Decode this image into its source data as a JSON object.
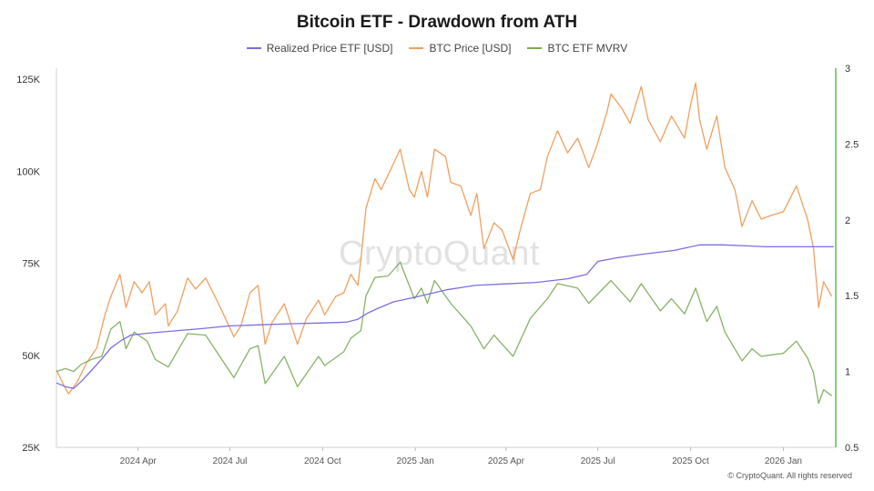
{
  "chart_data": {
    "type": "line",
    "title": "Bitcoin ETF - Drawdown from ATH",
    "watermark": "CryptoQuant",
    "copyright": "© CryptoQuant. All rights reserved",
    "x_tick_labels": [
      "2024 Apr",
      "2024 Jul",
      "2024 Oct",
      "2025 Jan",
      "2025 Apr",
      "2025 Jul",
      "2025 Oct",
      "2026 Jan"
    ],
    "x_tick_dates": [
      "2024-04-01",
      "2024-07-01",
      "2024-10-01",
      "2025-01-01",
      "2025-04-01",
      "2025-07-01",
      "2025-10-01",
      "2026-01-01"
    ],
    "xlim": [
      "2024-01-11",
      "2026-02-22"
    ],
    "left_axis": {
      "ylim": [
        25000,
        128000
      ],
      "ticks": [
        25000,
        50000,
        75000,
        100000,
        125000
      ],
      "tick_labels": [
        "25K",
        "50K",
        "75K",
        "100K",
        "125K"
      ]
    },
    "right_axis": {
      "ylim": [
        0.5,
        3
      ],
      "ticks": [
        0.5,
        1,
        1.5,
        2,
        2.5,
        3
      ],
      "tick_labels": [
        "0.5",
        "1",
        "1.5",
        "2",
        "2.5",
        "3"
      ]
    },
    "grid": false,
    "legend_position": "top-center",
    "series": [
      {
        "name": "Realized Price ETF [USD]",
        "axis": "left",
        "color": "#7b6fe0",
        "points": [
          [
            "2024-01-11",
            42500
          ],
          [
            "2024-01-20",
            41500
          ],
          [
            "2024-01-28",
            41000
          ],
          [
            "2024-02-05",
            43000
          ],
          [
            "2024-02-15",
            46000
          ],
          [
            "2024-02-25",
            49000
          ],
          [
            "2024-03-05",
            52000
          ],
          [
            "2024-03-15",
            54000
          ],
          [
            "2024-03-25",
            55500
          ],
          [
            "2024-04-10",
            56000
          ],
          [
            "2024-05-01",
            56500
          ],
          [
            "2024-06-01",
            57200
          ],
          [
            "2024-07-01",
            58000
          ],
          [
            "2024-08-01",
            58300
          ],
          [
            "2024-09-01",
            58600
          ],
          [
            "2024-10-01",
            58800
          ],
          [
            "2024-10-25",
            59000
          ],
          [
            "2024-11-05",
            59800
          ],
          [
            "2024-11-15",
            61500
          ],
          [
            "2024-11-25",
            62800
          ],
          [
            "2024-12-10",
            64500
          ],
          [
            "2025-01-01",
            65800
          ],
          [
            "2025-02-01",
            67800
          ],
          [
            "2025-03-01",
            69000
          ],
          [
            "2025-04-01",
            69400
          ],
          [
            "2025-05-01",
            69800
          ],
          [
            "2025-06-01",
            70800
          ],
          [
            "2025-06-20",
            72000
          ],
          [
            "2025-07-01",
            75500
          ],
          [
            "2025-07-20",
            76500
          ],
          [
            "2025-08-15",
            77500
          ],
          [
            "2025-09-15",
            78500
          ],
          [
            "2025-10-10",
            80000
          ],
          [
            "2025-11-01",
            80000
          ],
          [
            "2025-11-20",
            79800
          ],
          [
            "2025-12-15",
            79500
          ],
          [
            "2026-01-15",
            79500
          ],
          [
            "2026-02-20",
            79500
          ]
        ]
      },
      {
        "name": "BTC Price [USD]",
        "axis": "left",
        "color": "#f0a060",
        "points": [
          [
            "2024-01-11",
            46000
          ],
          [
            "2024-01-18",
            42000
          ],
          [
            "2024-01-23",
            39500
          ],
          [
            "2024-02-01",
            43000
          ],
          [
            "2024-02-10",
            48000
          ],
          [
            "2024-02-20",
            52000
          ],
          [
            "2024-02-28",
            61000
          ],
          [
            "2024-03-05",
            66000
          ],
          [
            "2024-03-14",
            72000
          ],
          [
            "2024-03-20",
            63000
          ],
          [
            "2024-03-28",
            70000
          ],
          [
            "2024-04-05",
            67000
          ],
          [
            "2024-04-12",
            70000
          ],
          [
            "2024-04-18",
            61000
          ],
          [
            "2024-04-28",
            64000
          ],
          [
            "2024-05-01",
            58000
          ],
          [
            "2024-05-10",
            62000
          ],
          [
            "2024-05-20",
            71000
          ],
          [
            "2024-05-28",
            68000
          ],
          [
            "2024-06-07",
            71000
          ],
          [
            "2024-06-18",
            65000
          ],
          [
            "2024-06-25",
            61000
          ],
          [
            "2024-07-05",
            55000
          ],
          [
            "2024-07-12",
            58000
          ],
          [
            "2024-07-21",
            67000
          ],
          [
            "2024-07-29",
            69000
          ],
          [
            "2024-08-05",
            53000
          ],
          [
            "2024-08-12",
            59000
          ],
          [
            "2024-08-24",
            64000
          ],
          [
            "2024-09-06",
            53000
          ],
          [
            "2024-09-15",
            60000
          ],
          [
            "2024-09-27",
            65000
          ],
          [
            "2024-10-03",
            61000
          ],
          [
            "2024-10-14",
            66000
          ],
          [
            "2024-10-22",
            67000
          ],
          [
            "2024-10-29",
            72000
          ],
          [
            "2024-11-05",
            69000
          ],
          [
            "2024-11-08",
            76000
          ],
          [
            "2024-11-13",
            90000
          ],
          [
            "2024-11-22",
            98000
          ],
          [
            "2024-11-28",
            95000
          ],
          [
            "2024-12-05",
            99000
          ],
          [
            "2024-12-17",
            106000
          ],
          [
            "2024-12-26",
            95000
          ],
          [
            "2024-12-31",
            93000
          ],
          [
            "2025-01-07",
            100000
          ],
          [
            "2025-01-13",
            93000
          ],
          [
            "2025-01-20",
            106000
          ],
          [
            "2025-01-31",
            104000
          ],
          [
            "2025-02-05",
            97000
          ],
          [
            "2025-02-15",
            96000
          ],
          [
            "2025-02-25",
            88000
          ],
          [
            "2025-03-03",
            94000
          ],
          [
            "2025-03-10",
            79000
          ],
          [
            "2025-03-20",
            86000
          ],
          [
            "2025-03-28",
            84000
          ],
          [
            "2025-04-08",
            76000
          ],
          [
            "2025-04-15",
            84000
          ],
          [
            "2025-04-25",
            94000
          ],
          [
            "2025-05-05",
            95000
          ],
          [
            "2025-05-12",
            104000
          ],
          [
            "2025-05-22",
            111000
          ],
          [
            "2025-06-01",
            105000
          ],
          [
            "2025-06-11",
            109000
          ],
          [
            "2025-06-22",
            101000
          ],
          [
            "2025-06-30",
            107000
          ],
          [
            "2025-07-10",
            116000
          ],
          [
            "2025-07-14",
            121000
          ],
          [
            "2025-07-25",
            117000
          ],
          [
            "2025-08-02",
            113000
          ],
          [
            "2025-08-13",
            123000
          ],
          [
            "2025-08-20",
            114000
          ],
          [
            "2025-09-01",
            108000
          ],
          [
            "2025-09-12",
            115000
          ],
          [
            "2025-09-25",
            109000
          ],
          [
            "2025-10-01",
            118000
          ],
          [
            "2025-10-06",
            124000
          ],
          [
            "2025-10-10",
            114000
          ],
          [
            "2025-10-17",
            106000
          ],
          [
            "2025-10-27",
            115000
          ],
          [
            "2025-11-04",
            101000
          ],
          [
            "2025-11-14",
            95000
          ],
          [
            "2025-11-21",
            85000
          ],
          [
            "2025-12-01",
            92000
          ],
          [
            "2025-12-10",
            87000
          ],
          [
            "2025-12-20",
            88000
          ],
          [
            "2026-01-01",
            89000
          ],
          [
            "2026-01-14",
            96000
          ],
          [
            "2026-01-25",
            87000
          ],
          [
            "2026-01-31",
            79000
          ],
          [
            "2026-02-05",
            63000
          ],
          [
            "2026-02-10",
            70000
          ],
          [
            "2026-02-18",
            66000
          ]
        ]
      },
      {
        "name": "BTC ETF MVRV",
        "axis": "right",
        "color": "#7aaa58",
        "points": [
          [
            "2024-01-11",
            1.0
          ],
          [
            "2024-01-20",
            1.02
          ],
          [
            "2024-01-28",
            1.0
          ],
          [
            "2024-02-05",
            1.05
          ],
          [
            "2024-02-15",
            1.08
          ],
          [
            "2024-02-25",
            1.1
          ],
          [
            "2024-03-05",
            1.28
          ],
          [
            "2024-03-14",
            1.33
          ],
          [
            "2024-03-20",
            1.15
          ],
          [
            "2024-03-28",
            1.26
          ],
          [
            "2024-04-10",
            1.2
          ],
          [
            "2024-04-18",
            1.08
          ],
          [
            "2024-05-01",
            1.03
          ],
          [
            "2024-05-20",
            1.25
          ],
          [
            "2024-06-07",
            1.24
          ],
          [
            "2024-06-25",
            1.06
          ],
          [
            "2024-07-05",
            0.96
          ],
          [
            "2024-07-21",
            1.15
          ],
          [
            "2024-07-29",
            1.17
          ],
          [
            "2024-08-05",
            0.92
          ],
          [
            "2024-08-24",
            1.1
          ],
          [
            "2024-09-06",
            0.9
          ],
          [
            "2024-09-27",
            1.1
          ],
          [
            "2024-10-03",
            1.04
          ],
          [
            "2024-10-22",
            1.13
          ],
          [
            "2024-10-29",
            1.22
          ],
          [
            "2024-11-08",
            1.27
          ],
          [
            "2024-11-13",
            1.5
          ],
          [
            "2024-11-22",
            1.62
          ],
          [
            "2024-12-05",
            1.63
          ],
          [
            "2024-12-17",
            1.72
          ],
          [
            "2024-12-31",
            1.48
          ],
          [
            "2025-01-07",
            1.55
          ],
          [
            "2025-01-13",
            1.45
          ],
          [
            "2025-01-20",
            1.6
          ],
          [
            "2025-02-05",
            1.45
          ],
          [
            "2025-02-25",
            1.3
          ],
          [
            "2025-03-10",
            1.15
          ],
          [
            "2025-03-20",
            1.24
          ],
          [
            "2025-04-08",
            1.1
          ],
          [
            "2025-04-25",
            1.35
          ],
          [
            "2025-05-12",
            1.48
          ],
          [
            "2025-05-22",
            1.58
          ],
          [
            "2025-06-11",
            1.55
          ],
          [
            "2025-06-22",
            1.45
          ],
          [
            "2025-07-14",
            1.6
          ],
          [
            "2025-08-02",
            1.46
          ],
          [
            "2025-08-13",
            1.58
          ],
          [
            "2025-09-01",
            1.4
          ],
          [
            "2025-09-12",
            1.48
          ],
          [
            "2025-09-25",
            1.38
          ],
          [
            "2025-10-06",
            1.55
          ],
          [
            "2025-10-17",
            1.33
          ],
          [
            "2025-10-27",
            1.43
          ],
          [
            "2025-11-04",
            1.26
          ],
          [
            "2025-11-21",
            1.07
          ],
          [
            "2025-12-01",
            1.15
          ],
          [
            "2025-12-10",
            1.1
          ],
          [
            "2025-12-20",
            1.11
          ],
          [
            "2026-01-01",
            1.12
          ],
          [
            "2026-01-14",
            1.2
          ],
          [
            "2026-01-25",
            1.09
          ],
          [
            "2026-01-31",
            0.99
          ],
          [
            "2026-02-05",
            0.79
          ],
          [
            "2026-02-10",
            0.88
          ],
          [
            "2026-02-18",
            0.84
          ]
        ]
      }
    ]
  }
}
